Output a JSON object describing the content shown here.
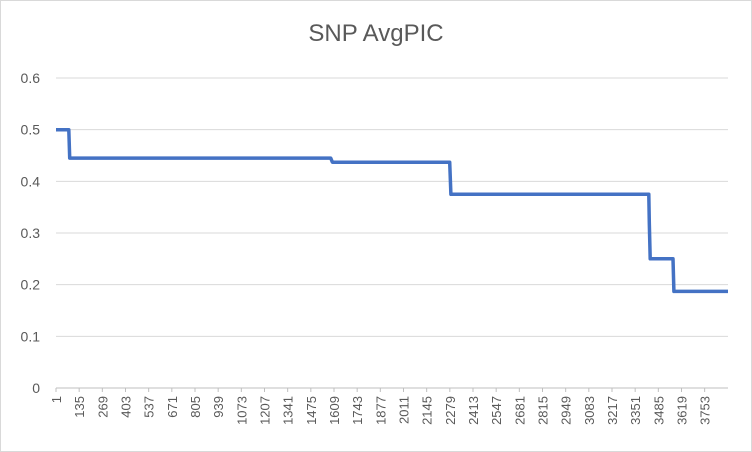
{
  "chart_data": {
    "type": "line",
    "title": "SNP AvgPIC",
    "xlabel": "",
    "ylabel": "",
    "xlim": [
      1,
      3888
    ],
    "ylim": [
      0,
      0.6
    ],
    "yticks": [
      "0",
      "0.1",
      "0.2",
      "0.3",
      "0.4",
      "0.5",
      "0.6"
    ],
    "xticks": [
      "1",
      "135",
      "269",
      "403",
      "537",
      "671",
      "805",
      "939",
      "1073",
      "1207",
      "1341",
      "1475",
      "1609",
      "1743",
      "1877",
      "2011",
      "2145",
      "2279",
      "2413",
      "2547",
      "2681",
      "2815",
      "2949",
      "3083",
      "3217",
      "3351",
      "3485",
      "3619",
      "3753"
    ],
    "grid": true,
    "legend": "none",
    "colors": {
      "line": "#4472c4",
      "grid": "#d9d9d9",
      "text": "#595959"
    },
    "series": [
      {
        "points": [
          [
            1,
            0.5
          ],
          [
            75,
            0.5
          ],
          [
            80,
            0.445
          ],
          [
            1590,
            0.445
          ],
          [
            1600,
            0.437
          ],
          [
            2278,
            0.437
          ],
          [
            2285,
            0.375
          ],
          [
            3430,
            0.375
          ],
          [
            3433,
            0.32
          ],
          [
            3438,
            0.25
          ],
          [
            3570,
            0.25
          ],
          [
            3575,
            0.187
          ],
          [
            3888,
            0.187
          ]
        ]
      }
    ]
  }
}
